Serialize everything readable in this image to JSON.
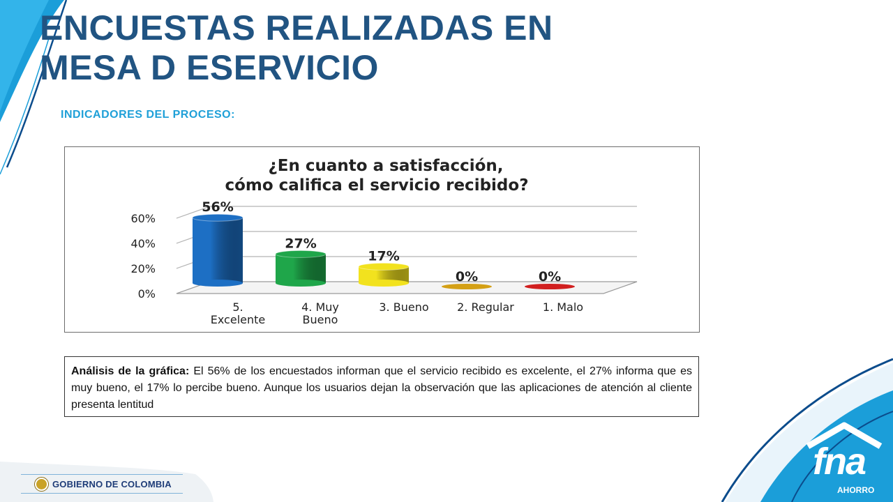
{
  "slide": {
    "title": "ENCUESTAS REALIZADAS EN MESA D ESERVICIO",
    "subtitle": "INDICADORES DEL PROCESO:"
  },
  "analysis": {
    "label": "Análisis de la gráfica:",
    "text": "El 56% de los encuestados informan que el servicio recibido es excelente, el 27% informa que es muy bueno, el 17% lo percibe bueno. Aunque los usuarios dejan la observación que las aplicaciones de atención al cliente presenta lentitud"
  },
  "footer": {
    "government_label": "GOBIERNO DE COLOMBIA",
    "logo_text": "fna",
    "logo_subtext": "AHORRO"
  },
  "colors": {
    "title": "#215482",
    "subtitle": "#1fa0d8",
    "brand_blue": "#1b9ed9",
    "brand_dark": "#0b4c8c"
  },
  "chart_data": {
    "type": "bar",
    "title": "¿En cuanto a satisfacción, cómo califica el servicio recibido?",
    "categories": [
      "5. Excelente",
      "4. Muy Bueno",
      "3. Bueno",
      "2. Regular",
      "1. Malo"
    ],
    "values": [
      56,
      27,
      17,
      0,
      0
    ],
    "data_labels": [
      "56%",
      "27%",
      "17%",
      "0%",
      "0%"
    ],
    "y_ticks": [
      "0%",
      "20%",
      "40%",
      "60%"
    ],
    "ylim": [
      0,
      60
    ],
    "grid": true,
    "legend": "none",
    "bar_colors": [
      "#1d6fc4",
      "#1fa64a",
      "#f2e21e",
      "#d4a015",
      "#d11f1f"
    ]
  }
}
